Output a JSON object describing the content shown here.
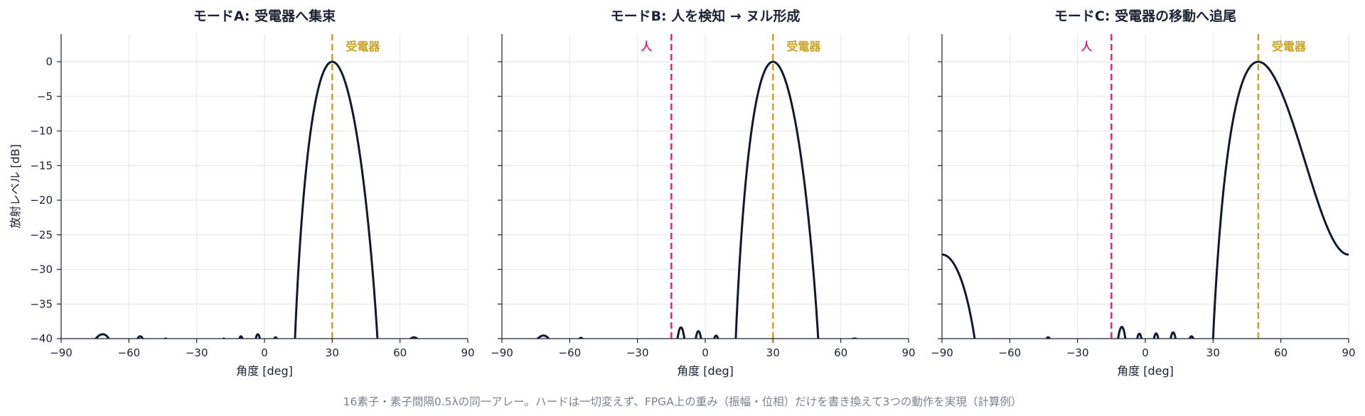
{
  "caption": "16素子・素子間隔0.5λの同一アレー。ハードは一切変えず、FPGA上の重み（振幅・位相）だけを書き換えて3つの動作を実現（計算例）",
  "colors": {
    "line": "#0f1b2d",
    "receiver": "#c9a227",
    "person": "#e0237f",
    "grid": "#e6e6e6"
  },
  "chart_data": [
    {
      "type": "line",
      "title": "モードA: 受電器へ集束",
      "xlabel": "角度 [deg]",
      "ylabel": "放射レベル [dB]",
      "xlim": [
        -90,
        90
      ],
      "ylim": [
        -40,
        4
      ],
      "xticks": [
        "−90",
        "−60",
        "−30",
        "0",
        "30",
        "60",
        "90"
      ],
      "yticks": [
        "0",
        "−5",
        "−10",
        "−15",
        "−20",
        "−25",
        "−30",
        "−35",
        "−40"
      ],
      "grid": true,
      "series": [
        {
          "elements": 16,
          "spacing_lambda": 0.5,
          "steer_deg": 30,
          "null_deg": null
        }
      ],
      "markers": [
        {
          "label": "受電器",
          "x": 30,
          "kind": "receiver"
        }
      ]
    },
    {
      "type": "line",
      "title": "モードB: 人を検知 → ヌル形成",
      "xlabel": "角度 [deg]",
      "ylabel": "",
      "xlim": [
        -90,
        90
      ],
      "ylim": [
        -40,
        4
      ],
      "xticks": [
        "−90",
        "−60",
        "−30",
        "0",
        "30",
        "60",
        "90"
      ],
      "yticks": [],
      "grid": true,
      "series": [
        {
          "elements": 16,
          "spacing_lambda": 0.5,
          "steer_deg": 30,
          "null_deg": -15
        }
      ],
      "markers": [
        {
          "label": "人",
          "x": -15,
          "kind": "person"
        },
        {
          "label": "受電器",
          "x": 30,
          "kind": "receiver"
        }
      ]
    },
    {
      "type": "line",
      "title": "モードC: 受電器の移動へ追尾",
      "xlabel": "角度 [deg]",
      "ylabel": "",
      "xlim": [
        -90,
        90
      ],
      "ylim": [
        -40,
        4
      ],
      "xticks": [
        "−90",
        "−60",
        "−30",
        "0",
        "30",
        "60",
        "90"
      ],
      "yticks": [],
      "grid": true,
      "series": [
        {
          "elements": 16,
          "spacing_lambda": 0.5,
          "steer_deg": 50,
          "null_deg": -15
        }
      ],
      "markers": [
        {
          "label": "人",
          "x": -15,
          "kind": "person"
        },
        {
          "label": "受電器",
          "x": 50,
          "kind": "receiver"
        }
      ]
    }
  ]
}
